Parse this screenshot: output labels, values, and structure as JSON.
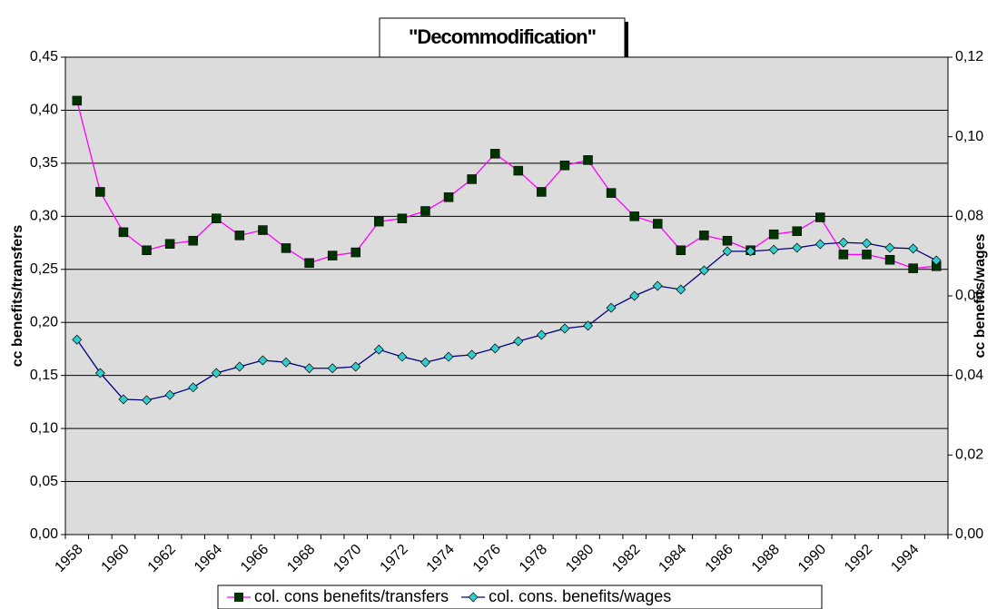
{
  "chart_data": {
    "type": "line",
    "title": "\"Decommodification\"",
    "y_label": "cc benefits/transfers",
    "y2_label": "cc benefits/wages",
    "categories": [
      "1958",
      null,
      "1960",
      null,
      "1962",
      null,
      "1964",
      null,
      "1966",
      null,
      "1968",
      null,
      "1970",
      null,
      "1972",
      null,
      "1974",
      null,
      "1976",
      null,
      "1978",
      null,
      "1980",
      null,
      "1982",
      null,
      "1984",
      null,
      "1986",
      null,
      "1988",
      null,
      "1990",
      null,
      "1992",
      null,
      "1994",
      null
    ],
    "series": [
      {
        "name": "col. cons benefits/transfers",
        "color": "#ff00ff",
        "marker_color": "#003300",
        "marker": "square",
        "values": [
          0.409,
          0.323,
          0.285,
          0.268,
          0.274,
          0.277,
          0.298,
          0.282,
          0.287,
          0.27,
          0.256,
          0.263,
          0.266,
          0.295,
          0.298,
          0.305,
          0.318,
          0.335,
          0.359,
          0.343,
          0.323,
          0.348,
          0.353,
          0.322,
          0.3,
          0.293,
          0.268,
          0.282,
          0.277,
          0.268,
          0.283,
          0.286,
          0.299,
          0.264,
          0.264,
          0.259,
          0.251,
          0.253
        ]
      },
      {
        "name": "col. cons. benefits/wages",
        "color": "#000080",
        "marker_color": "#33cccc",
        "marker": "diamond",
        "axis": "y2",
        "values": [
          0.049,
          0.0406,
          0.034,
          0.0338,
          0.0351,
          0.037,
          0.0406,
          0.0422,
          0.0438,
          0.0433,
          0.0418,
          0.0418,
          0.0422,
          0.0465,
          0.0447,
          0.0433,
          0.0447,
          0.0452,
          0.0468,
          0.0486,
          0.0502,
          0.0518,
          0.0525,
          0.057,
          0.06,
          0.0625,
          0.0616,
          0.0664,
          0.0712,
          0.0712,
          0.0716,
          0.0721,
          0.073,
          0.0734,
          0.0732,
          0.0721,
          0.0719,
          0.0689
        ]
      }
    ],
    "ylim": [
      0,
      0.45
    ],
    "yticks": [
      {
        "value": 0,
        "label": "0,00"
      },
      {
        "value": 0.05,
        "label": "0,05"
      },
      {
        "value": 0.1,
        "label": "0,10"
      },
      {
        "value": 0.15,
        "label": "0,15"
      },
      {
        "value": 0.2,
        "label": "0,20"
      },
      {
        "value": 0.25,
        "label": "0,25"
      },
      {
        "value": 0.3,
        "label": "0,30"
      },
      {
        "value": 0.35,
        "label": "0,35"
      },
      {
        "value": 0.4,
        "label": "0,40"
      },
      {
        "value": 0.45,
        "label": "0,45"
      }
    ],
    "y2lim": [
      0,
      0.12
    ],
    "y2ticks": [
      {
        "value": 0,
        "label": "0,00"
      },
      {
        "value": 0.02,
        "label": "0,02"
      },
      {
        "value": 0.04,
        "label": "0,04"
      },
      {
        "value": 0.06,
        "label": "0,06"
      },
      {
        "value": 0.08,
        "label": "0,08"
      },
      {
        "value": 0.1,
        "label": "0,10"
      },
      {
        "value": 0.12,
        "label": "0,12"
      }
    ],
    "grid": true,
    "legend": "bottom",
    "plot_background": "#dcdcdc"
  }
}
